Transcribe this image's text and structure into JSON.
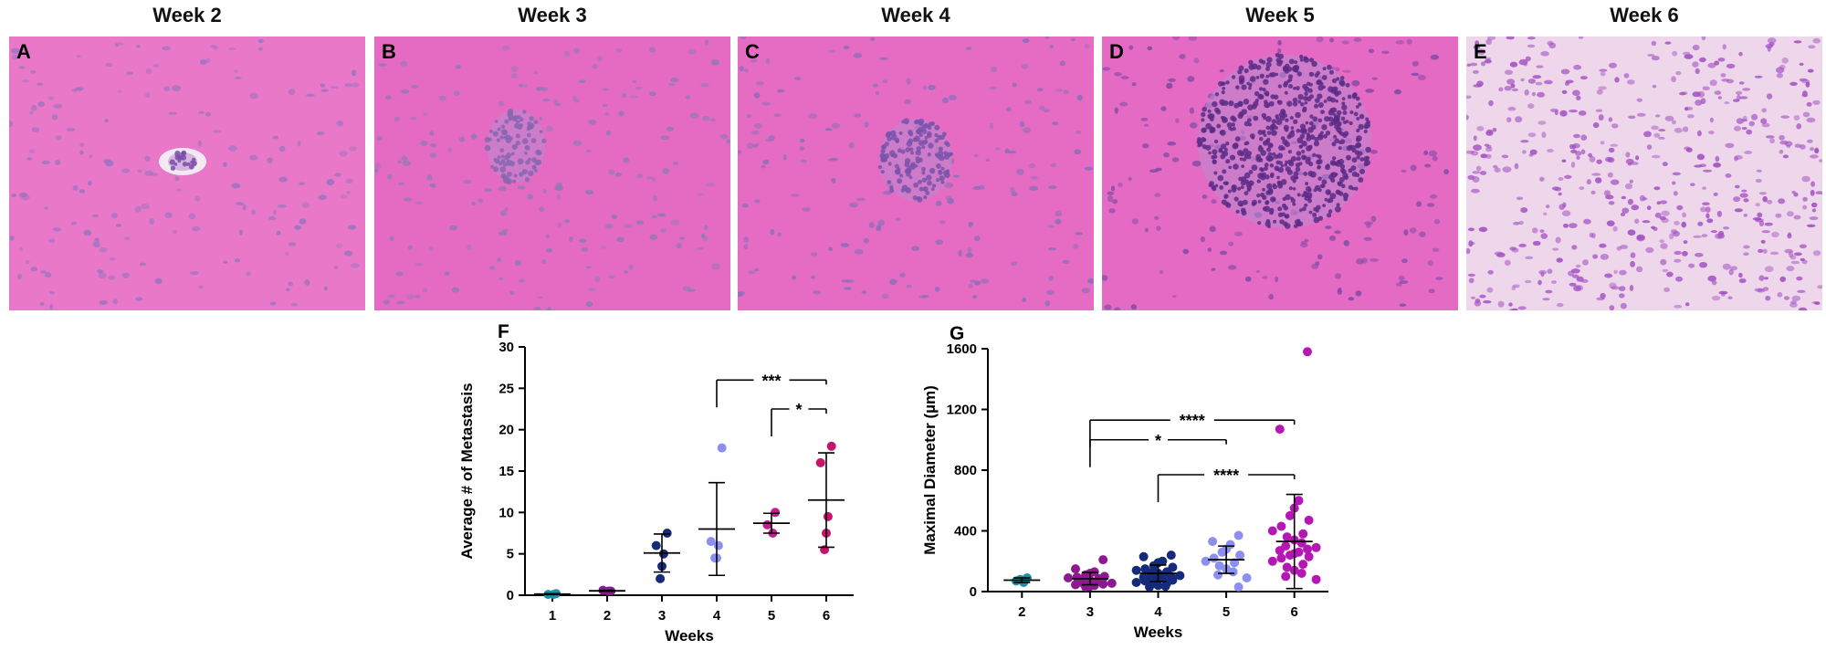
{
  "panels": [
    {
      "letter": "A",
      "week": "Week 2",
      "tint": "#e978c8",
      "nuclei": "#9a74c0",
      "lesion": "small"
    },
    {
      "letter": "B",
      "week": "Week 3",
      "tint": "#e56ac2",
      "nuclei": "#8f7ab5",
      "lesion": "small-cluster"
    },
    {
      "letter": "C",
      "week": "Week 4",
      "tint": "#e66cc3",
      "nuclei": "#8a6fb8",
      "lesion": "medium"
    },
    {
      "letter": "D",
      "week": "Week 5",
      "tint": "#e56ac3",
      "nuclei": "#7e4aa6",
      "lesion": "large"
    },
    {
      "letter": "E",
      "week": "Week 6",
      "tint": "#eed7ea",
      "nuclei": "#a24fc2",
      "lesion": "diffuse"
    }
  ],
  "chart_data": [
    {
      "type": "scatter",
      "panel_letter": "F",
      "xlabel": "Weeks",
      "ylabel": "Average # of Metastasis",
      "categories": [
        "1",
        "2",
        "3",
        "4",
        "5",
        "6"
      ],
      "ylim": [
        0,
        30
      ],
      "yticks": [
        0,
        5,
        10,
        15,
        20,
        25,
        30
      ],
      "series": [
        {
          "category": "1",
          "color": "#1f8fa6",
          "points": [
            0.2,
            0.1,
            0.1
          ]
        },
        {
          "category": "2",
          "color": "#8b1a8e",
          "points": [
            0.5,
            0.6,
            0.5
          ]
        },
        {
          "category": "3",
          "color": "#152b7a",
          "points": [
            7.5,
            6.0,
            5.0,
            3.5,
            2.0
          ]
        },
        {
          "category": "4",
          "color": "#8d8ff0",
          "points": [
            17.8,
            6.5,
            6.0,
            4.5,
            4.5
          ]
        },
        {
          "category": "5",
          "color": "#c41e8e",
          "points": [
            10.0,
            8.5,
            7.5
          ]
        },
        {
          "category": "6",
          "color": "#c4156a",
          "points": [
            18.0,
            16.0,
            9.5,
            7.5,
            5.5
          ]
        }
      ],
      "mean_sd": [
        {
          "category": "1",
          "mean": 0.13,
          "sd": 0.06
        },
        {
          "category": "2",
          "mean": 0.53,
          "sd": 0.06
        },
        {
          "category": "3",
          "mean": 5.1,
          "sd": 2.3
        },
        {
          "category": "4",
          "mean": 8.0,
          "sd": 5.6
        },
        {
          "category": "5",
          "mean": 8.7,
          "sd": 1.2
        },
        {
          "category": "6",
          "mean": 11.5,
          "sd": 5.7
        }
      ],
      "significance": [
        {
          "from": "4",
          "to": "6",
          "label": "***",
          "y": 26.0
        },
        {
          "from": "5",
          "to": "6",
          "label": "*",
          "y": 22.5
        }
      ]
    },
    {
      "type": "scatter",
      "panel_letter": "G",
      "xlabel": "Weeks",
      "ylabel": "Maximal Diameter (µm)",
      "categories": [
        "2",
        "3",
        "4",
        "5",
        "6"
      ],
      "ylim": [
        0,
        1600
      ],
      "yticks": [
        0,
        400,
        800,
        1200,
        1600
      ],
      "series": [
        {
          "category": "2",
          "color": "#1f8fa6",
          "points": [
            90,
            70,
            60,
            75,
            80
          ]
        },
        {
          "category": "3",
          "color": "#8b1a8e",
          "points": [
            210,
            150,
            130,
            120,
            110,
            100,
            95,
            90,
            85,
            80,
            75,
            70,
            60,
            55,
            50,
            45,
            40,
            35,
            30
          ]
        },
        {
          "category": "4",
          "color": "#152b7a",
          "points": [
            240,
            230,
            200,
            190,
            170,
            160,
            150,
            140,
            130,
            125,
            120,
            115,
            110,
            105,
            100,
            95,
            90,
            85,
            80,
            75,
            70,
            60,
            55,
            50,
            40,
            35,
            30
          ]
        },
        {
          "category": "5",
          "color": "#8d8ff0",
          "points": [
            370,
            330,
            310,
            280,
            260,
            240,
            220,
            200,
            190,
            170,
            150,
            130,
            110,
            90,
            30
          ]
        },
        {
          "category": "6",
          "color": "#b517b5",
          "points": [
            1580,
            1070,
            600,
            550,
            500,
            470,
            430,
            400,
            380,
            360,
            340,
            320,
            300,
            290,
            280,
            270,
            260,
            250,
            240,
            230,
            220,
            200,
            180,
            160,
            140,
            120,
            100,
            80
          ]
        }
      ],
      "mean_sd": [
        {
          "category": "2",
          "mean": 75,
          "sd": 15
        },
        {
          "category": "3",
          "mean": 85,
          "sd": 40
        },
        {
          "category": "4",
          "mean": 120,
          "sd": 55
        },
        {
          "category": "5",
          "mean": 210,
          "sd": 90
        },
        {
          "category": "6",
          "mean": 330,
          "sd": 310
        }
      ],
      "significance": [
        {
          "from": "3",
          "to": "6",
          "label": "****",
          "y": 1130
        },
        {
          "from": "3",
          "to": "5",
          "label": "*",
          "y": 1000
        },
        {
          "from": "4",
          "to": "6",
          "label": "****",
          "y": 770
        }
      ]
    }
  ]
}
